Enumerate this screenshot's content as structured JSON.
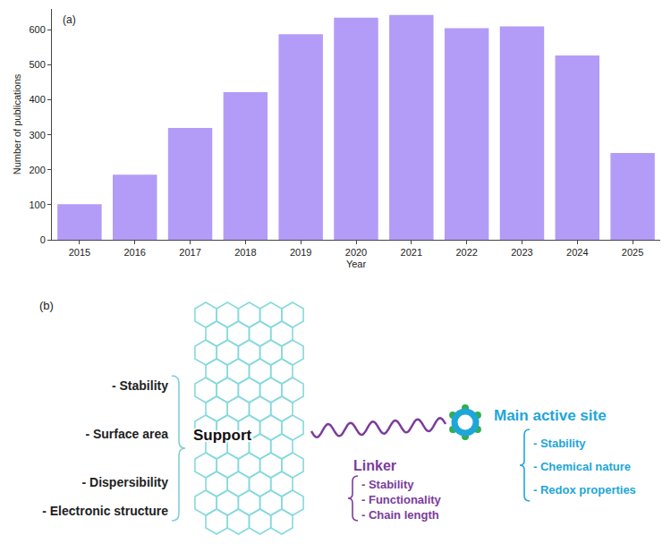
{
  "chart_data": {
    "type": "bar",
    "x_label": "Year",
    "y_label": "Number of publications",
    "annotations": [
      "(a)"
    ],
    "categories": [
      "2015",
      "2016",
      "2017",
      "2018",
      "2019",
      "2020",
      "2021",
      "2022",
      "2023",
      "2024",
      "2025"
    ],
    "values": [
      102,
      186,
      320,
      422,
      588,
      635,
      643,
      605,
      610,
      527,
      248
    ],
    "color": "#b39cf7",
    "ylim": [
      0,
      660
    ],
    "yticks": [
      0,
      100,
      200,
      300,
      400,
      500,
      600
    ],
    "grid": false
  },
  "diagram": {
    "label": "(b)",
    "support": {
      "label": "Support",
      "properties": [
        "- Stability",
        "- Surface area",
        "- Dispersibility",
        "- Electronic structure"
      ]
    },
    "linker": {
      "label": "Linker",
      "properties": [
        "- Stability",
        "- Functionality",
        "- Chain length"
      ]
    },
    "active_site": {
      "label": "Main active site",
      "properties": [
        "- Stability",
        "- Chemical nature",
        "- Redox properties"
      ]
    }
  }
}
